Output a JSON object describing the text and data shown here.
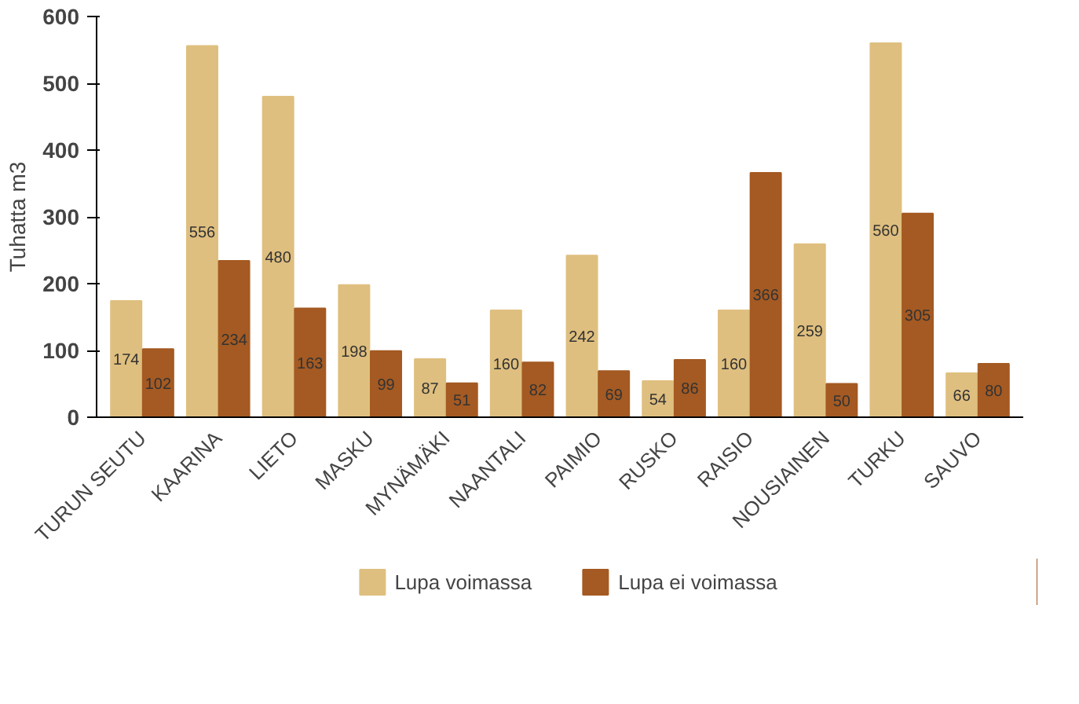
{
  "chart_data": {
    "type": "bar",
    "ylabel": "Tuhatta m3",
    "categories": [
      "TURUN SEUTU",
      "KAARINA",
      "LIETO",
      "MASKU",
      "MYNÄMÄKI",
      "NAANTALI",
      "PAIMIO",
      "RUSKO",
      "RAISIO",
      "NOUSIAINEN",
      "TURKU",
      "SAUVO"
    ],
    "series": [
      {
        "name": "Lupa voimassa",
        "color": "#dfbf7f",
        "values": [
          174,
          556,
          480,
          198,
          87,
          160,
          242,
          54,
          160,
          259,
          560,
          66
        ]
      },
      {
        "name": "Lupa ei voimassa",
        "color": "#a45a22",
        "values": [
          102,
          234,
          163,
          99,
          51,
          82,
          69,
          86,
          366,
          50,
          305,
          80
        ]
      }
    ],
    "ylim": [
      0,
      600
    ],
    "yticks": [
      0,
      100,
      200,
      300,
      400,
      500,
      600
    ],
    "grid": false,
    "legend": "bottom",
    "data_labels": true
  }
}
